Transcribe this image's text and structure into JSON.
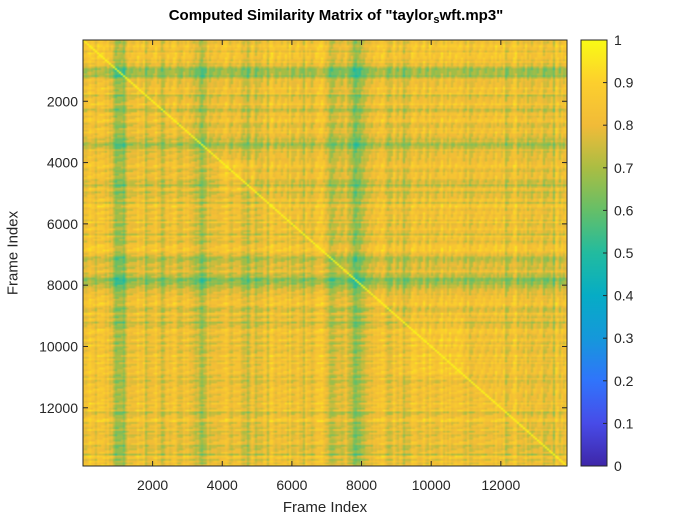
{
  "chart_data": {
    "type": "heatmap",
    "title": {
      "before": "Computed Similarity Matrix of \"taylor",
      "subscript": "s",
      "after": "wft.mp3\""
    },
    "xlabel": "Frame Index",
    "ylabel": "Frame Index",
    "xlim": [
      1,
      13900
    ],
    "ylim": [
      1,
      13900
    ],
    "y_reversed": true,
    "xticks": [
      2000,
      4000,
      6000,
      8000,
      10000,
      12000
    ],
    "yticks": [
      2000,
      4000,
      6000,
      8000,
      10000,
      12000
    ],
    "colorbar": {
      "colormap": "parula",
      "limits": [
        0,
        1
      ],
      "ticks": [
        0,
        0.1,
        0.2,
        0.3,
        0.4,
        0.5,
        0.6,
        0.7,
        0.8,
        0.9,
        1
      ],
      "tick_labels": [
        "0",
        "0.1",
        "0.2",
        "0.3",
        "0.4",
        "0.5",
        "0.6",
        "0.7",
        "0.8",
        "0.9",
        "1"
      ]
    },
    "grid": false,
    "notes": "Self-similarity matrix, symmetric, values mostly 0.7–1 (yellow/orange) with darker cyan/green banding (~0.45–0.6) near frames 1000, 3300, 4700, 7200, 7800, 8000, 12900; main diagonal near 1."
  }
}
